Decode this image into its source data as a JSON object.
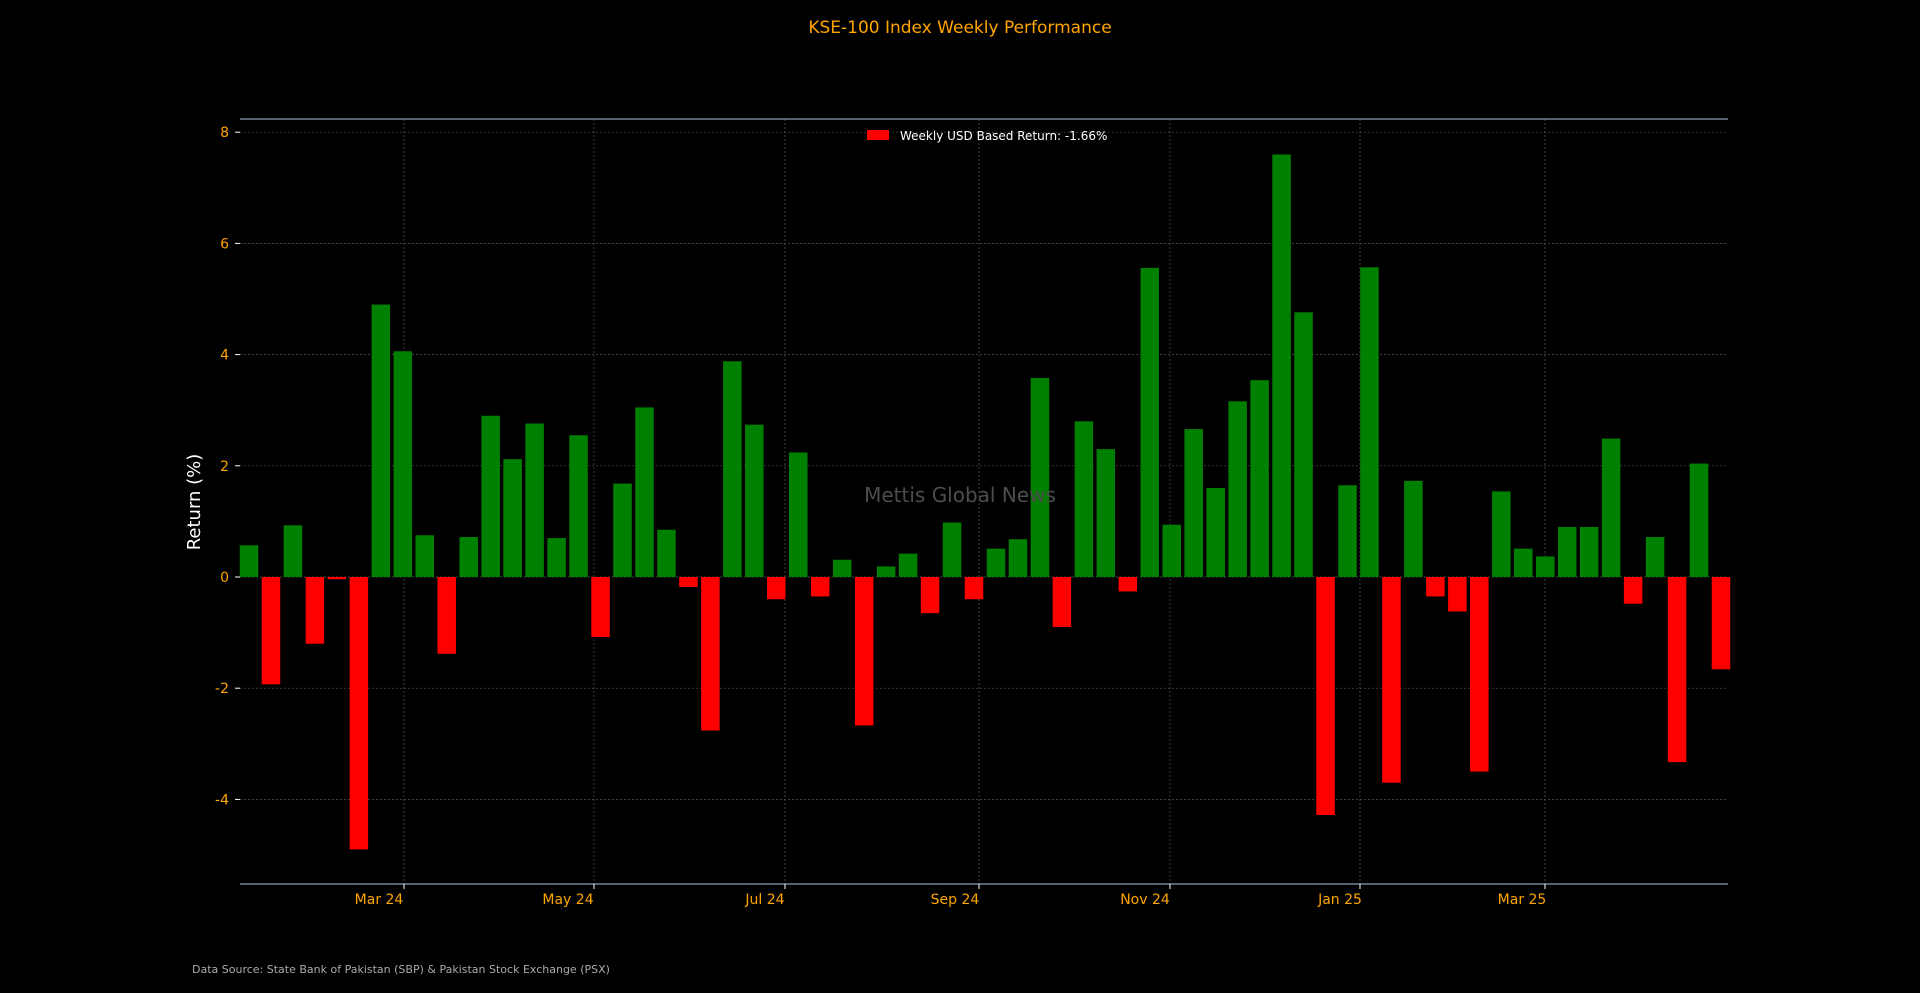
{
  "chart_data": {
    "type": "bar",
    "title": "KSE-100 Index Weekly Performance",
    "ylabel": "Return (%)",
    "xlabel": "",
    "ylim": [
      -5.5,
      8.3
    ],
    "yticks": [
      -4,
      -2,
      0,
      2,
      4,
      6,
      8
    ],
    "grid": true,
    "legend": {
      "label": "Weekly USD Based Return: -1.66%",
      "placement": "top-center",
      "color": "#ff0000"
    },
    "xtick_labels": [
      "Mar 24",
      "May 24",
      "Jul 24",
      "Sep 24",
      "Nov 24",
      "Jan 25",
      "Mar 25"
    ],
    "colors": {
      "positive": "#008000",
      "negative": "#ff0000",
      "background": "#000000",
      "text": "#ffa500",
      "grid": "#555555"
    },
    "values": [
      0.57,
      -1.93,
      0.93,
      -1.2,
      -0.04,
      -4.9,
      4.9,
      4.06,
      0.75,
      -1.38,
      0.72,
      2.9,
      2.12,
      2.76,
      0.7,
      2.55,
      -1.08,
      1.68,
      3.05,
      0.85,
      -0.18,
      -2.76,
      3.88,
      2.74,
      -0.4,
      2.24,
      -0.35,
      0.31,
      -2.67,
      0.19,
      0.42,
      -0.65,
      0.98,
      -0.4,
      0.51,
      0.68,
      3.58,
      -0.9,
      2.8,
      2.3,
      -0.26,
      5.56,
      0.94,
      2.66,
      1.6,
      3.16,
      3.54,
      7.6,
      4.76,
      -4.28,
      1.65,
      5.57,
      -3.7,
      1.73,
      -0.35,
      -0.62,
      -3.5,
      1.54,
      0.51,
      0.37,
      0.9,
      0.9,
      2.49,
      -0.48,
      0.72,
      -3.33,
      2.04,
      -1.66
    ]
  },
  "watermark": "Mettis Global News",
  "footer": {
    "source": "Data Source: State Bank of Pakistan (SBP) & Pakistan Stock Exchange (PSX)"
  }
}
